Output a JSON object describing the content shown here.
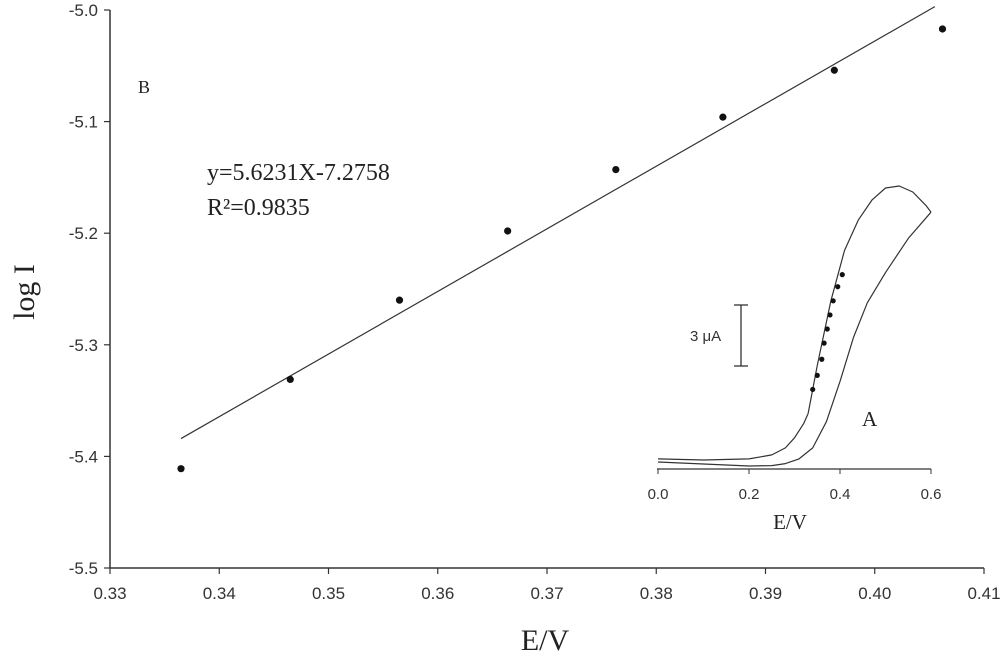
{
  "chart_data": [
    {
      "type": "scatter",
      "panel_label": "B",
      "xlabel": "E/V",
      "ylabel": "log I",
      "xlim": [
        0.33,
        0.41
      ],
      "ylim": [
        -5.5,
        -5.0
      ],
      "x_ticks": [
        0.33,
        0.34,
        0.35,
        0.36,
        0.37,
        0.38,
        0.39,
        0.4,
        0.41
      ],
      "x_tick_labels": [
        "0.33",
        "0.34",
        "0.35",
        "0.36",
        "0.37",
        "0.38",
        "0.39",
        "0.40",
        "0.41"
      ],
      "y_ticks": [
        -5.0,
        -5.1,
        -5.2,
        -5.3,
        -5.4,
        -5.5
      ],
      "y_tick_labels": [
        "-5.0",
        "-5.1",
        "-5.2",
        "-5.3",
        "-5.4",
        "-5.5"
      ],
      "series": [
        {
          "x": [
            0.3365,
            0.3465,
            0.3565,
            0.3664,
            0.3763,
            0.3861,
            0.3963,
            0.4062
          ],
          "y": [
            -5.411,
            -5.331,
            -5.26,
            -5.198,
            -5.143,
            -5.096,
            -5.054,
            -5.017
          ]
        }
      ],
      "fit_line": {
        "x": [
          0.3365,
          0.4055
        ],
        "y": [
          -5.384,
          -4.997
        ]
      },
      "annotations": [
        "y=5.6231X-7.2758",
        "R²=0.9835"
      ],
      "grid": false
    },
    {
      "type": "line",
      "panel_label": "A",
      "xlabel": "E/V",
      "xlim": [
        0.0,
        0.6
      ],
      "x_tick_labels": [
        "0.0",
        "0.2",
        "0.4",
        "0.6"
      ],
      "scale_bar_label": "3 μA",
      "series": [
        {
          "x": [
            0.33,
            0.35,
            0.38,
            0.41,
            0.44,
            0.47,
            0.5,
            0.53,
            0.56,
            0.59,
            0.6
          ],
          "y": [
            2.6,
            5.0,
            8.2,
            10.7,
            12.2,
            13.2,
            13.8,
            13.9,
            13.6,
            12.9,
            12.6
          ]
        },
        {
          "x": [
            0.0,
            0.1,
            0.2,
            0.25,
            0.28,
            0.31,
            0.34,
            0.37,
            0.4,
            0.43,
            0.46,
            0.5,
            0.55,
            0.6
          ],
          "y": [
            0.2,
            0.1,
            0.0,
            0.02,
            0.12,
            0.35,
            0.9,
            2.2,
            4.2,
            6.4,
            8.1,
            9.6,
            11.3,
            12.6
          ]
        },
        {
          "x": [
            0.0,
            0.1,
            0.2,
            0.25,
            0.28,
            0.3,
            0.32,
            0.33
          ],
          "y": [
            0.35,
            0.3,
            0.35,
            0.55,
            0.9,
            1.4,
            2.1,
            2.6
          ]
        },
        {
          "x": [
            0.34,
            0.35,
            0.36,
            0.365,
            0.372,
            0.378,
            0.385,
            0.395,
            0.405
          ],
          "y": [
            3.8,
            4.5,
            5.3,
            6.1,
            6.8,
            7.5,
            8.2,
            8.9,
            9.5
          ]
        }
      ],
      "grid": false
    }
  ]
}
